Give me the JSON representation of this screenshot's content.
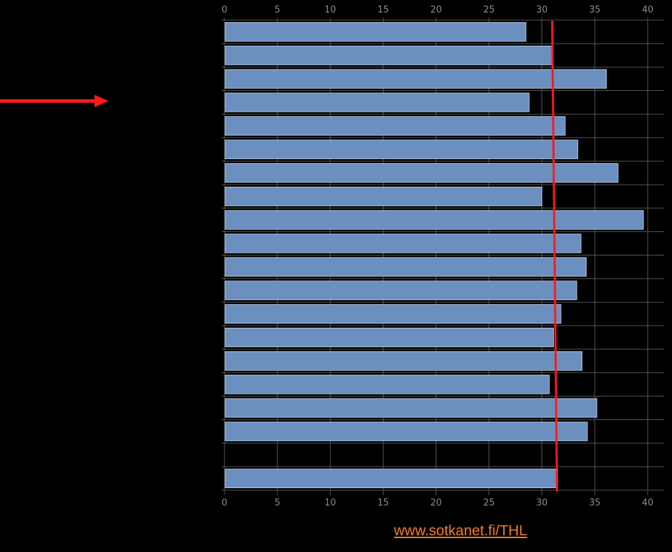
{
  "chart_data": {
    "type": "bar",
    "orientation": "horizontal",
    "xlim": [
      0,
      40
    ],
    "x_ticks": [
      0,
      5,
      10,
      15,
      20,
      25,
      30,
      35,
      40
    ],
    "categories": [
      "",
      "",
      "",
      "",
      "",
      "",
      "",
      "",
      "",
      "",
      "",
      "",
      "",
      "",
      "",
      "",
      "",
      "",
      "",
      ""
    ],
    "values": [
      28.5,
      31.0,
      36.1,
      28.8,
      32.2,
      33.4,
      37.2,
      30.0,
      39.6,
      33.7,
      34.2,
      33.3,
      31.8,
      31.1,
      33.8,
      30.7,
      35.2,
      34.3,
      null,
      31.5
    ],
    "reference_line": {
      "value": 31.3,
      "color": "#ff1a1a"
    },
    "highlight_arrow": {
      "points_to_index": 3,
      "color": "#ff1a1a"
    },
    "bar_color": "#6b8fbf",
    "grid": true,
    "grid_color": "#555555",
    "background": "#000000"
  },
  "source": {
    "text": "www.sotkanet.fi/THL",
    "color": "#f07d2d"
  }
}
